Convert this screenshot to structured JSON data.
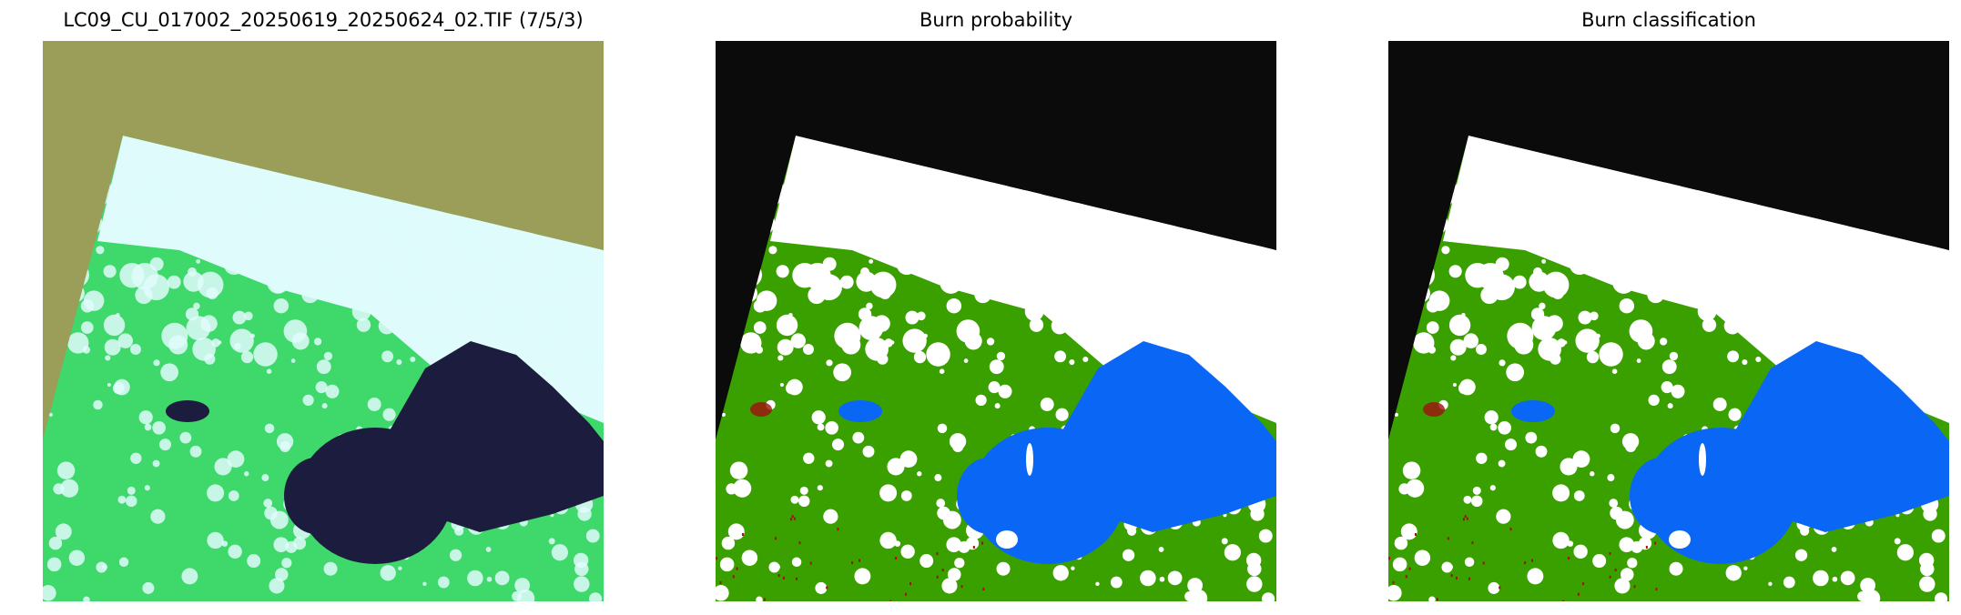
{
  "panels": [
    {
      "title": "LC09_CU_017002_20250619_20250624_02.TIF (7/5/3)",
      "kind": "rgb"
    },
    {
      "title": "Burn probability",
      "kind": "class"
    },
    {
      "title": "Burn classification",
      "kind": "class"
    }
  ],
  "colors": {
    "nodata_rgb": "#9a9e58",
    "vegetation_rgb": "#3fd86a",
    "cloud_rgb": "#dffbfb",
    "water_rgb": "#1c1d3e",
    "nodata_class": "#0b0b0b",
    "unburned": "#3aa000",
    "cloud": "#ffffff",
    "water": "#0a66f5",
    "burned": "#a01010"
  }
}
